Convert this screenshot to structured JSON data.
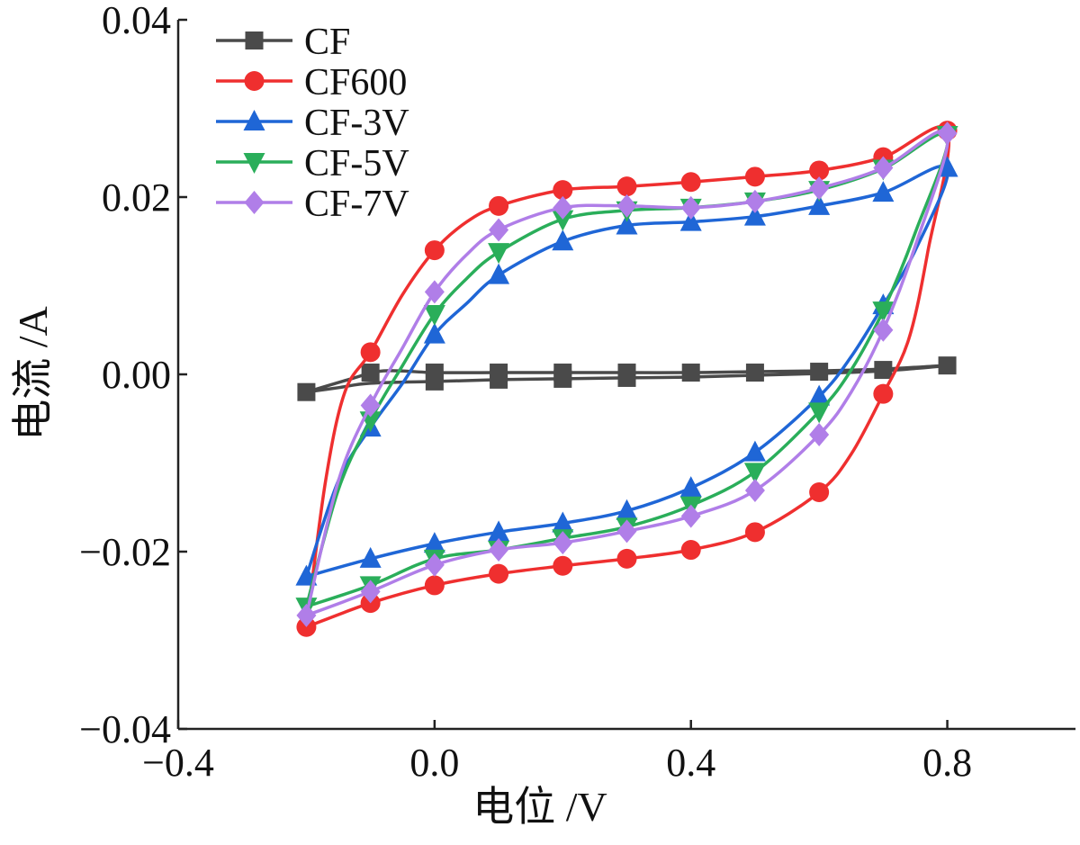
{
  "chart_data": {
    "type": "line",
    "xlabel": "电位 /V",
    "ylabel": "电流 /A",
    "xlim": [
      -0.4,
      1.0
    ],
    "ylim": [
      -0.04,
      0.04
    ],
    "xticks": [
      -0.4,
      0.0,
      0.4,
      0.8
    ],
    "xtick_labels": [
      "−0.4",
      "0.0",
      "0.4",
      "0.8"
    ],
    "yticks": [
      -0.04,
      -0.02,
      0.0,
      0.02,
      0.04
    ],
    "ytick_labels": [
      "−0.04",
      "−0.02",
      "0.00",
      "0.02",
      "0.04"
    ],
    "legend_position": "top-left",
    "series": [
      {
        "name": "CF",
        "color": "#4a4a4a",
        "marker": "square",
        "markers": [
          [
            -0.2,
            -0.002
          ],
          [
            -0.1,
            0.0002
          ],
          [
            0.0,
            0.0002
          ],
          [
            0.1,
            0.0002
          ],
          [
            0.2,
            0.0002
          ],
          [
            0.3,
            0.0002
          ],
          [
            0.4,
            0.0002
          ],
          [
            0.5,
            0.0002
          ],
          [
            0.6,
            0.0003
          ],
          [
            0.7,
            0.0005
          ],
          [
            0.8,
            0.001
          ],
          [
            0.0,
            -0.0008
          ],
          [
            0.1,
            -0.0006
          ],
          [
            0.2,
            -0.0005
          ],
          [
            0.3,
            -0.0004
          ]
        ],
        "curve": [
          [
            -0.2,
            -0.002
          ],
          [
            -0.15,
            -0.0015
          ],
          [
            -0.1,
            -0.001
          ],
          [
            0.0,
            -0.0008
          ],
          [
            0.1,
            -0.0006
          ],
          [
            0.2,
            -0.0005
          ],
          [
            0.3,
            -0.0004
          ],
          [
            0.4,
            -0.0003
          ],
          [
            0.5,
            -0.0001
          ],
          [
            0.6,
            0.0001
          ],
          [
            0.7,
            0.0004
          ],
          [
            0.8,
            0.001
          ],
          [
            0.7,
            0.0006
          ],
          [
            0.6,
            0.0004
          ],
          [
            0.5,
            0.0003
          ],
          [
            0.4,
            0.0002
          ],
          [
            0.3,
            0.0002
          ],
          [
            0.2,
            0.0002
          ],
          [
            0.1,
            0.0002
          ],
          [
            0.0,
            0.0002
          ],
          [
            -0.08,
            0.0004
          ],
          [
            -0.13,
            -0.0005
          ],
          [
            -0.2,
            -0.002
          ]
        ]
      },
      {
        "name": "CF600",
        "color": "#ef2f2f",
        "marker": "circle",
        "markers": [
          [
            -0.1,
            0.0025
          ],
          [
            0.0,
            0.014
          ],
          [
            0.1,
            0.019
          ],
          [
            0.2,
            0.0208
          ],
          [
            0.3,
            0.0212
          ],
          [
            0.4,
            0.0217
          ],
          [
            0.5,
            0.0223
          ],
          [
            0.6,
            0.023
          ],
          [
            0.7,
            0.0245
          ],
          [
            0.8,
            0.0275
          ],
          [
            0.7,
            -0.0022
          ],
          [
            0.6,
            -0.0133
          ],
          [
            0.5,
            -0.0178
          ],
          [
            0.4,
            -0.0198
          ],
          [
            0.3,
            -0.0208
          ],
          [
            0.2,
            -0.0216
          ],
          [
            0.1,
            -0.0225
          ],
          [
            0.0,
            -0.0238
          ],
          [
            -0.1,
            -0.0258
          ],
          [
            -0.2,
            -0.0285
          ]
        ],
        "curve": [
          [
            -0.2,
            -0.0285
          ],
          [
            -0.17,
            -0.012
          ],
          [
            -0.14,
            -0.002
          ],
          [
            -0.1,
            0.0025
          ],
          [
            -0.05,
            0.009
          ],
          [
            0.0,
            0.014
          ],
          [
            0.05,
            0.0172
          ],
          [
            0.1,
            0.019
          ],
          [
            0.2,
            0.0208
          ],
          [
            0.3,
            0.0212
          ],
          [
            0.4,
            0.0217
          ],
          [
            0.5,
            0.0223
          ],
          [
            0.6,
            0.023
          ],
          [
            0.7,
            0.0245
          ],
          [
            0.8,
            0.0275
          ],
          [
            0.77,
            0.014
          ],
          [
            0.74,
            0.004
          ],
          [
            0.7,
            -0.0022
          ],
          [
            0.65,
            -0.009
          ],
          [
            0.6,
            -0.0133
          ],
          [
            0.5,
            -0.0178
          ],
          [
            0.4,
            -0.0198
          ],
          [
            0.3,
            -0.0208
          ],
          [
            0.2,
            -0.0216
          ],
          [
            0.1,
            -0.0225
          ],
          [
            0.0,
            -0.0238
          ],
          [
            -0.1,
            -0.0258
          ],
          [
            -0.2,
            -0.0285
          ]
        ]
      },
      {
        "name": "CF-3V",
        "color": "#1f66d6",
        "marker": "triangle-up",
        "markers": [
          [
            -0.1,
            -0.006
          ],
          [
            0.0,
            0.0045
          ],
          [
            0.1,
            0.0112
          ],
          [
            0.2,
            0.015
          ],
          [
            0.3,
            0.0168
          ],
          [
            0.4,
            0.0172
          ],
          [
            0.5,
            0.0178
          ],
          [
            0.6,
            0.019
          ],
          [
            0.7,
            0.0205
          ],
          [
            0.8,
            0.0233
          ],
          [
            0.7,
            0.0078
          ],
          [
            0.6,
            -0.0025
          ],
          [
            0.5,
            -0.0088
          ],
          [
            0.4,
            -0.0128
          ],
          [
            0.3,
            -0.0154
          ],
          [
            0.2,
            -0.0168
          ],
          [
            0.1,
            -0.0178
          ],
          [
            0.0,
            -0.0191
          ],
          [
            -0.1,
            -0.0208
          ],
          [
            -0.2,
            -0.0228
          ]
        ],
        "curve": [
          [
            -0.2,
            -0.0228
          ],
          [
            -0.15,
            -0.012
          ],
          [
            -0.1,
            -0.006
          ],
          [
            -0.05,
            -0.001
          ],
          [
            0.0,
            0.0045
          ],
          [
            0.05,
            0.008
          ],
          [
            0.1,
            0.0112
          ],
          [
            0.2,
            0.015
          ],
          [
            0.3,
            0.0168
          ],
          [
            0.4,
            0.0172
          ],
          [
            0.5,
            0.0178
          ],
          [
            0.6,
            0.019
          ],
          [
            0.7,
            0.0205
          ],
          [
            0.8,
            0.0233
          ],
          [
            0.75,
            0.014
          ],
          [
            0.7,
            0.0078
          ],
          [
            0.65,
            0.002
          ],
          [
            0.6,
            -0.0025
          ],
          [
            0.5,
            -0.0088
          ],
          [
            0.4,
            -0.0128
          ],
          [
            0.3,
            -0.0154
          ],
          [
            0.2,
            -0.0168
          ],
          [
            0.1,
            -0.0178
          ],
          [
            0.0,
            -0.0191
          ],
          [
            -0.1,
            -0.0208
          ],
          [
            -0.2,
            -0.0228
          ]
        ]
      },
      {
        "name": "CF-5V",
        "color": "#2aae5a",
        "marker": "triangle-down",
        "markers": [
          [
            -0.1,
            -0.0052
          ],
          [
            0.0,
            0.0068
          ],
          [
            0.1,
            0.0138
          ],
          [
            0.2,
            0.0175
          ],
          [
            0.3,
            0.0185
          ],
          [
            0.4,
            0.0188
          ],
          [
            0.5,
            0.0195
          ],
          [
            0.6,
            0.0208
          ],
          [
            0.7,
            0.0232
          ],
          [
            0.8,
            0.027
          ],
          [
            0.7,
            0.0072
          ],
          [
            0.6,
            -0.0042
          ],
          [
            0.5,
            -0.011
          ],
          [
            0.4,
            -0.0148
          ],
          [
            0.3,
            -0.0172
          ],
          [
            0.2,
            -0.0185
          ],
          [
            0.1,
            -0.0198
          ],
          [
            0.0,
            -0.0208
          ],
          [
            -0.1,
            -0.0238
          ],
          [
            -0.2,
            -0.0262
          ]
        ],
        "curve": [
          [
            -0.2,
            -0.0262
          ],
          [
            -0.15,
            -0.013
          ],
          [
            -0.1,
            -0.0052
          ],
          [
            -0.05,
            0.001
          ],
          [
            0.0,
            0.0068
          ],
          [
            0.05,
            0.0108
          ],
          [
            0.1,
            0.0138
          ],
          [
            0.2,
            0.0175
          ],
          [
            0.3,
            0.0185
          ],
          [
            0.4,
            0.0188
          ],
          [
            0.5,
            0.0195
          ],
          [
            0.6,
            0.0208
          ],
          [
            0.7,
            0.0232
          ],
          [
            0.8,
            0.027
          ],
          [
            0.75,
            0.016
          ],
          [
            0.7,
            0.0072
          ],
          [
            0.65,
            0.0005
          ],
          [
            0.6,
            -0.0042
          ],
          [
            0.5,
            -0.011
          ],
          [
            0.4,
            -0.0148
          ],
          [
            0.3,
            -0.0172
          ],
          [
            0.2,
            -0.0185
          ],
          [
            0.1,
            -0.0198
          ],
          [
            0.0,
            -0.0208
          ],
          [
            -0.1,
            -0.0238
          ],
          [
            -0.2,
            -0.0262
          ]
        ]
      },
      {
        "name": "CF-7V",
        "color": "#b07ee8",
        "marker": "diamond",
        "markers": [
          [
            -0.1,
            -0.0035
          ],
          [
            0.0,
            0.0093
          ],
          [
            0.1,
            0.0163
          ],
          [
            0.2,
            0.0188
          ],
          [
            0.3,
            0.019
          ],
          [
            0.4,
            0.0188
          ],
          [
            0.5,
            0.0195
          ],
          [
            0.6,
            0.021
          ],
          [
            0.7,
            0.0233
          ],
          [
            0.8,
            0.0272
          ],
          [
            0.7,
            0.005
          ],
          [
            0.6,
            -0.0068
          ],
          [
            0.5,
            -0.0131
          ],
          [
            0.4,
            -0.016
          ],
          [
            0.3,
            -0.0177
          ],
          [
            0.2,
            -0.019
          ],
          [
            0.1,
            -0.0198
          ],
          [
            0.0,
            -0.0215
          ],
          [
            -0.1,
            -0.0245
          ],
          [
            -0.2,
            -0.0272
          ]
        ],
        "curve": [
          [
            -0.2,
            -0.0272
          ],
          [
            -0.15,
            -0.012
          ],
          [
            -0.1,
            -0.0035
          ],
          [
            -0.05,
            0.003
          ],
          [
            0.0,
            0.0093
          ],
          [
            0.05,
            0.0135
          ],
          [
            0.1,
            0.0163
          ],
          [
            0.2,
            0.0188
          ],
          [
            0.3,
            0.019
          ],
          [
            0.4,
            0.0188
          ],
          [
            0.5,
            0.0195
          ],
          [
            0.6,
            0.021
          ],
          [
            0.7,
            0.0233
          ],
          [
            0.8,
            0.0272
          ],
          [
            0.75,
            0.0145
          ],
          [
            0.7,
            0.005
          ],
          [
            0.65,
            -0.002
          ],
          [
            0.6,
            -0.0068
          ],
          [
            0.5,
            -0.0131
          ],
          [
            0.4,
            -0.016
          ],
          [
            0.3,
            -0.0177
          ],
          [
            0.2,
            -0.019
          ],
          [
            0.1,
            -0.0198
          ],
          [
            0.0,
            -0.0215
          ],
          [
            -0.1,
            -0.0245
          ],
          [
            -0.2,
            -0.0272
          ]
        ]
      }
    ]
  }
}
